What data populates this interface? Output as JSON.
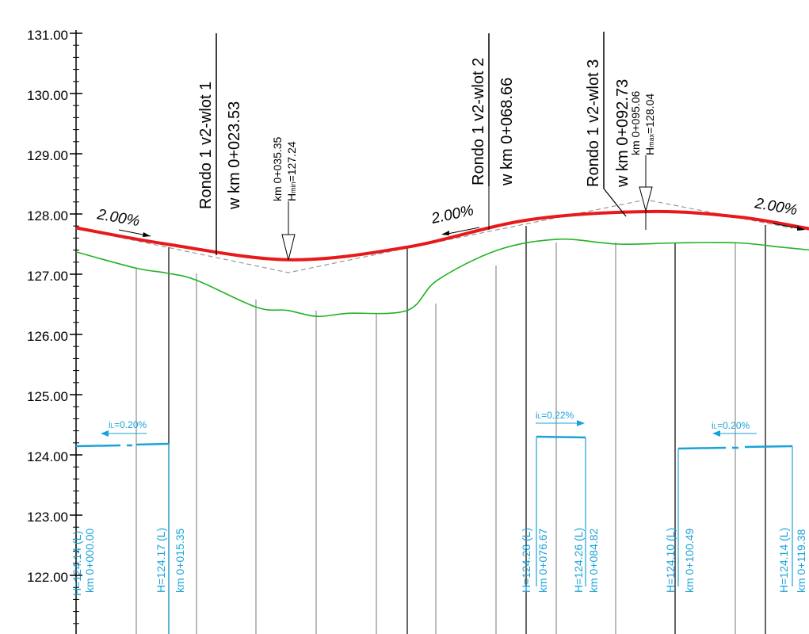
{
  "chart_data": {
    "type": "line",
    "y_axis": {
      "ticks": [
        "131.00",
        "130.00",
        "129.00",
        "128.00",
        "127.00",
        "126.00",
        "125.00",
        "124.00",
        "123.00",
        "122.00"
      ],
      "values": [
        131,
        130,
        129,
        128,
        127,
        126,
        125,
        124,
        123,
        122
      ],
      "range": [
        121,
        131.4
      ]
    },
    "series": [
      {
        "name": "",
        "color": "#e8191a",
        "x": [
          0,
          15,
          35.35,
          55,
          75,
          95.06,
          110,
          122
        ],
        "y": [
          127.77,
          127.5,
          127.24,
          127.45,
          127.9,
          128.04,
          127.95,
          127.75
        ]
      },
      {
        "name": "",
        "color": "#21b321",
        "x": [
          0,
          10,
          15,
          20,
          30,
          35,
          40,
          45,
          55,
          60,
          70,
          80,
          90,
          100,
          110,
          117,
          122
        ],
        "y": [
          127.37,
          127.1,
          127.02,
          126.9,
          126.45,
          126.4,
          126.3,
          126.35,
          126.4,
          126.9,
          127.4,
          127.58,
          127.5,
          127.52,
          127.52,
          127.45,
          127.4
        ]
      }
    ],
    "grades": [
      "2.00%",
      "2.00%",
      "2.00%"
    ],
    "rondo": [
      {
        "line1": "Rondo 1  v2-wlot 1",
        "line2": "w km 0+023.53"
      },
      {
        "line1": "Rondo 1  v2-wlot 2",
        "line2": "w km 0+068.66"
      },
      {
        "line1": "Rondo 1  v2-wlot  3",
        "line2": "w km 0+092.73"
      }
    ],
    "points": [
      {
        "km": "km 0+035.35",
        "h_prefix": "H",
        "h_sub": "min",
        "h_value": "=127.24"
      },
      {
        "km": "km 0+095.06",
        "h_prefix": "H",
        "h_sub": "max",
        "h_value": "=128.04"
      }
    ],
    "pipes": [
      {
        "slope_prefix": "i",
        "slope_sub": "L",
        "slope": "=0.20%"
      },
      {
        "slope_prefix": "i",
        "slope_sub": "L",
        "slope": "=0.22%"
      },
      {
        "slope_prefix": "i",
        "slope_sub": "L",
        "slope": "=0.20%"
      }
    ],
    "pipe_labels": [
      {
        "h": "H=124.14 (L)",
        "km": "km 0+000.00"
      },
      {
        "h": "H=124.17 (L)",
        "km": "km 0+015.35"
      },
      {
        "h": "H=124.28 (L)",
        "km": "km 0+076.67"
      },
      {
        "h": "H=124.26 (L)",
        "km": "km 0+084.82"
      },
      {
        "h": "H=124.10 (L)",
        "km": "km 0+100.49"
      },
      {
        "h": "H=124.14 (L)",
        "km": "km 0+119.38"
      }
    ],
    "colors": {
      "design": "#e8191a",
      "terrain": "#21b321",
      "pipe": "#1aa3d8",
      "tangent": "#999999"
    }
  }
}
